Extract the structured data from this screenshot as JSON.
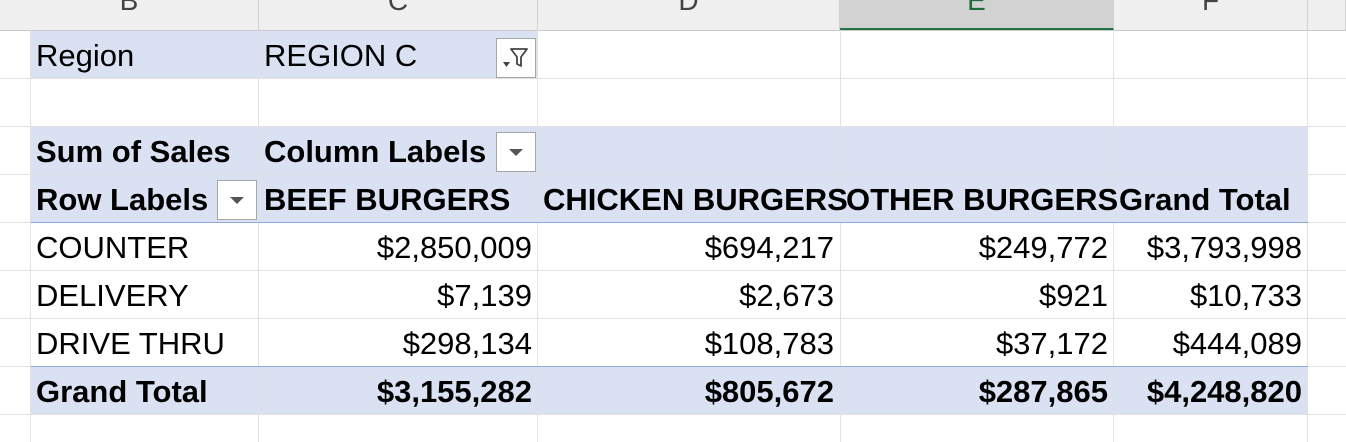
{
  "column_headers": [
    "B",
    "C",
    "D",
    "E",
    "F"
  ],
  "selected_column": "E",
  "filter": {
    "label": "Region",
    "value": "REGION C",
    "icon": "filter-dropdown-icon"
  },
  "pivot": {
    "values_label": "Sum of Sales",
    "column_labels_label": "Column Labels",
    "row_labels_label": "Row Labels",
    "columns": [
      "BEEF BURGERS",
      "CHICKEN BURGERS",
      "OTHER BURGERS",
      "Grand Total"
    ],
    "rows": [
      {
        "label": "COUNTER",
        "values": [
          "$2,850,009",
          "$694,217",
          "$249,772",
          "$3,793,998"
        ]
      },
      {
        "label": "DELIVERY",
        "values": [
          "$7,139",
          "$2,673",
          "$921",
          "$10,733"
        ]
      },
      {
        "label": "DRIVE THRU",
        "values": [
          "$298,134",
          "$108,783",
          "$37,172",
          "$444,089"
        ]
      }
    ],
    "grand_total": {
      "label": "Grand Total",
      "values": [
        "$3,155,282",
        "$805,672",
        "$287,865",
        "$4,248,820"
      ]
    }
  },
  "colors": {
    "header_fill": "#d9e1f2",
    "selected_column_accent": "#217346"
  }
}
